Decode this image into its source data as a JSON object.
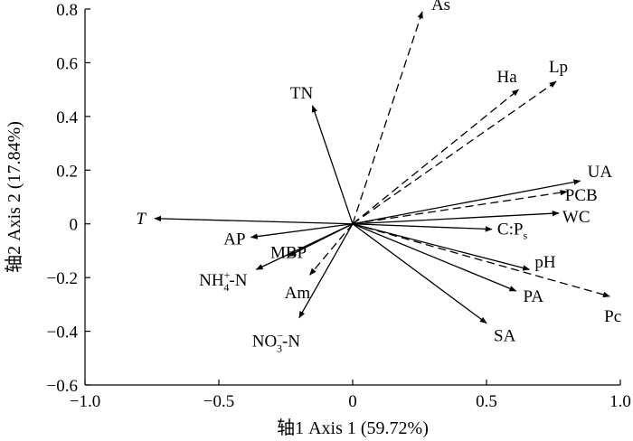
{
  "chart_data": {
    "type": "scatter",
    "subtype": "rda-biplot",
    "xlabel": "轴1 Axis 1 (59.72%)",
    "ylabel": "轴2 Axis 2 (17.84%)",
    "xlim": [
      -1.0,
      1.0
    ],
    "ylim": [
      -0.6,
      0.8
    ],
    "xticks": [
      -1.0,
      -0.5,
      0,
      0.5,
      1.0
    ],
    "yticks": [
      -0.6,
      -0.4,
      -0.2,
      0,
      0.2,
      0.4,
      0.6,
      0.8
    ],
    "xtick_labels": [
      "−1.0",
      "−0.5",
      "0",
      "0.5",
      "1.0"
    ],
    "ytick_labels": [
      "−0.6",
      "−0.4",
      "−0.2",
      "0",
      "0.2",
      "0.4",
      "0.6",
      "0.8"
    ],
    "grid": false,
    "arrow_color": "#000000",
    "vectors": [
      {
        "label": "As",
        "x": 0.26,
        "y": 0.79,
        "style": "dashed"
      },
      {
        "label": "Ha",
        "x": 0.62,
        "y": 0.5,
        "style": "dashed"
      },
      {
        "label": "Lp",
        "x": 0.76,
        "y": 0.53,
        "style": "dashed"
      },
      {
        "label": "TN",
        "x": -0.15,
        "y": 0.44,
        "style": "solid"
      },
      {
        "label": "UA",
        "x": 0.85,
        "y": 0.16,
        "style": "solid"
      },
      {
        "label": "PCB",
        "x": 0.8,
        "y": 0.12,
        "style": "dashed"
      },
      {
        "label": "WC",
        "x": 0.77,
        "y": 0.04,
        "style": "solid"
      },
      {
        "label": "C:Ps",
        "label_main": "C:P",
        "label_sub": "s",
        "x": 0.52,
        "y": -0.02,
        "style": "solid"
      },
      {
        "label": "pH",
        "x": 0.66,
        "y": -0.17,
        "style": "solid"
      },
      {
        "label": "Pc",
        "x": 0.96,
        "y": -0.27,
        "style": "dashed"
      },
      {
        "label": "PA",
        "x": 0.61,
        "y": -0.25,
        "style": "solid"
      },
      {
        "label": "SA",
        "x": 0.5,
        "y": -0.37,
        "style": "solid"
      },
      {
        "label": "T",
        "x": -0.74,
        "y": 0.02,
        "style": "solid",
        "italic": true
      },
      {
        "label": "AP",
        "x": -0.38,
        "y": -0.05,
        "style": "solid"
      },
      {
        "label": "MBP",
        "x": -0.24,
        "y": -0.12,
        "style": "solid"
      },
      {
        "label": "NH4+-N",
        "label_main": "NH",
        "label_sub": "4",
        "label_sup": "+",
        "label_tail": "-N",
        "x": -0.36,
        "y": -0.17,
        "style": "solid"
      },
      {
        "label": "Am",
        "x": -0.16,
        "y": -0.19,
        "style": "dashed"
      },
      {
        "label": "NO3−-N",
        "label_main": "NO",
        "label_sub": "3",
        "label_sup": "−",
        "label_tail": "-N",
        "x": -0.2,
        "y": -0.35,
        "style": "solid"
      }
    ]
  }
}
